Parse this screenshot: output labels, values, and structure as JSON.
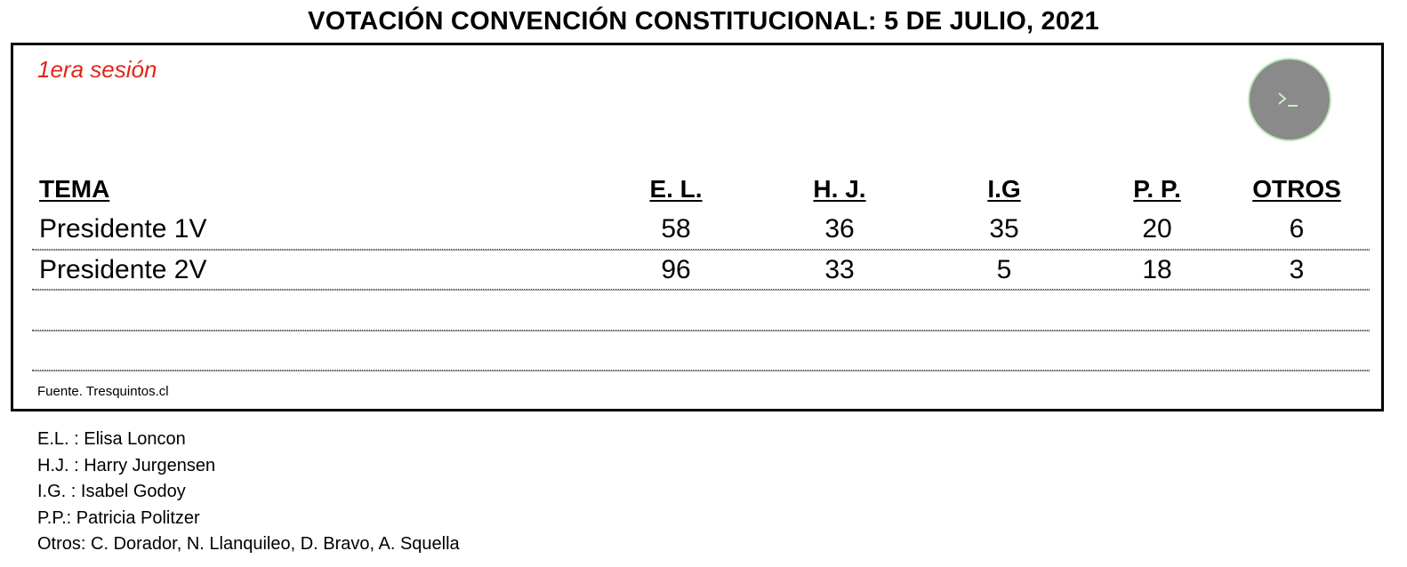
{
  "title": "VOTACIÓN CONVENCIÓN CONSTITUCIONAL: 5 DE JULIO, 2021",
  "session_label": "1era sesión",
  "session_color": "#e0251b",
  "terminal_button": {
    "icon": "terminal-prompt-icon",
    "symbol": ">_",
    "fill": "#8a8a8a",
    "icon_color": "#c8f0c2"
  },
  "table": {
    "headers": [
      "TEMA",
      "E. L.",
      "H. J.",
      "I.G",
      "P. P.",
      "OTROS"
    ],
    "rows": [
      [
        "Presidente 1V",
        "58",
        "36",
        "35",
        "20",
        "6"
      ],
      [
        "Presidente 2V",
        "96",
        "33",
        "5",
        "18",
        "3"
      ]
    ]
  },
  "source": "Fuente. Tresquintos.cl",
  "legend": [
    "E.L. : Elisa Loncon",
    "H.J. : Harry Jurgensen",
    "I.G. : Isabel Godoy",
    "P.P.: Patricia Politzer",
    "Otros: C. Dorador, N. Llanquileo, D. Bravo, A. Squella"
  ]
}
